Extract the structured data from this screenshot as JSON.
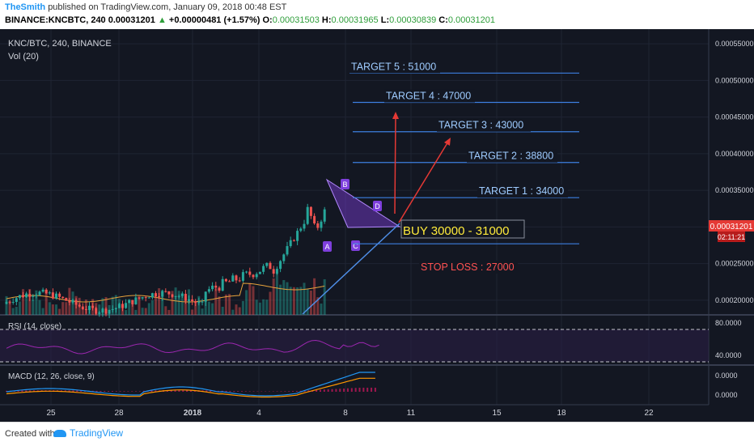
{
  "header": {
    "author": "TheSmith",
    "published": "published on TradingView.com, January 09, 2018 00:48 EST",
    "symbol": "BINANCE:KNCBTC, 240",
    "last": "0.00031201",
    "change": "+0.00000481 (+1.57%)",
    "open_label": "O:",
    "open": "0.00031503",
    "high_label": "H:",
    "high": "0.00031965",
    "low_label": "L:",
    "low": "0.00030839",
    "close_label": "C:",
    "close": "0.00031201"
  },
  "footer": {
    "created_with": "Created with",
    "brand": "TradingView"
  },
  "colors": {
    "background": "#131722",
    "up": "#26a69a",
    "down": "#ef5350",
    "target_line": "#3d7fe0",
    "target_text": "#9ecbff",
    "buy_text": "#ffeb3b",
    "stop_text": "#ff5252",
    "triangle_fill": "#7e3fdc",
    "price_tag": "#e53935"
  },
  "chart_data": [
    {
      "type": "candlestick",
      "title": "KNC/BTC, 240, BINANCE",
      "volume_label": "Vol (20)",
      "x_ticks": [
        "25",
        "28",
        "2018",
        "4",
        "8",
        "11",
        "15",
        "18",
        "22"
      ],
      "y_ticks": [
        "0.00055000",
        "0.00050000",
        "0.00045000",
        "0.00040000",
        "0.00035000",
        "0.00030000",
        "0.00025000",
        "0.00020000"
      ],
      "ylim": [
        0.00018,
        0.00057
      ],
      "last_price": "0.00031201",
      "countdown": "02:11:21",
      "pattern_labels": [
        "A",
        "B",
        "C",
        "D"
      ],
      "annotations": [
        {
          "text": "TARGET 5 : 51000",
          "price": 0.00051
        },
        {
          "text": "TARGET 4 : 47000",
          "price": 0.00047
        },
        {
          "text": "TARGET 3 : 43000",
          "price": 0.00043
        },
        {
          "text": "TARGET 2 : 38800",
          "price": 0.000388
        },
        {
          "text": "TARGET 1 : 34000",
          "price": 0.00034
        },
        {
          "text": "BUY 30000 - 31000",
          "price": 0.000305
        },
        {
          "text": "STOP LOSS : 27000",
          "price": 0.00027
        }
      ]
    },
    {
      "type": "line",
      "title": "RSI (14, close)",
      "y_ticks": [
        "80.0000",
        "40.0000"
      ],
      "ylim": [
        30,
        90
      ],
      "bands": [
        70,
        30
      ]
    },
    {
      "type": "line",
      "title": "MACD (12, 26, close, 9)",
      "y_ticks": [
        "0.0000",
        "0.0000"
      ]
    }
  ]
}
